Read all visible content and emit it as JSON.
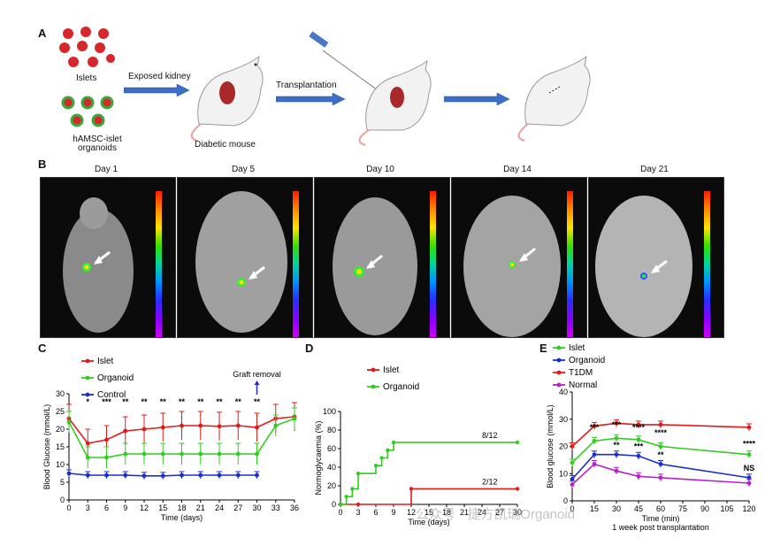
{
  "panel_a": {
    "letter": "A",
    "islets_label": "Islets",
    "organoid_label": "hAMSC-islet organoids",
    "step1_label": "Exposed kidney",
    "mouse_label": "Diabetic mouse",
    "step2_label": "Transplantation"
  },
  "panel_b": {
    "letter": "B",
    "images": [
      {
        "day": "Day 1"
      },
      {
        "day": "Day 5"
      },
      {
        "day": "Day 10"
      },
      {
        "day": "Day 14"
      },
      {
        "day": "Day 21"
      }
    ]
  },
  "chart_data": [
    {
      "panel": "C",
      "type": "line",
      "xlabel": "Time (days)",
      "ylabel": "Blood Glucose (mmol/L)",
      "xlim": [
        0,
        36
      ],
      "ylim": [
        0,
        30
      ],
      "xticks": [
        0,
        3,
        6,
        9,
        12,
        15,
        18,
        21,
        24,
        27,
        30,
        33,
        36
      ],
      "yticks": [
        0,
        5,
        10,
        15,
        20,
        25,
        30
      ],
      "annotation": "Graft removal",
      "annotation_x": 30,
      "significance": [
        {
          "x": 3,
          "label": "*"
        },
        {
          "x": 6,
          "label": "***"
        },
        {
          "x": 9,
          "label": "**"
        },
        {
          "x": 12,
          "label": "**"
        },
        {
          "x": 15,
          "label": "**"
        },
        {
          "x": 18,
          "label": "**"
        },
        {
          "x": 21,
          "label": "**"
        },
        {
          "x": 24,
          "label": "**"
        },
        {
          "x": 27,
          "label": "**"
        },
        {
          "x": 30,
          "label": "**"
        }
      ],
      "series": [
        {
          "name": "Islet",
          "color": "#e31a1c",
          "x": [
            0,
            3,
            6,
            9,
            12,
            15,
            18,
            21,
            24,
            27,
            30,
            33,
            36
          ],
          "y": [
            23,
            16,
            17,
            19.5,
            20,
            20.5,
            21,
            21,
            20.8,
            21,
            20.5,
            23,
            23.5
          ]
        },
        {
          "name": "Organoid",
          "color": "#33cc22",
          "x": [
            0,
            3,
            6,
            9,
            12,
            15,
            18,
            21,
            24,
            27,
            30,
            33,
            36
          ],
          "y": [
            22,
            12,
            12,
            13,
            13,
            13,
            13,
            13,
            13,
            13,
            13,
            21,
            23
          ]
        },
        {
          "name": "Control",
          "color": "#1a2ecf",
          "x": [
            0,
            3,
            6,
            9,
            12,
            15,
            18,
            21,
            24,
            27,
            30
          ],
          "y": [
            7.5,
            7,
            7,
            7,
            6.8,
            6.8,
            7,
            7,
            7,
            7,
            7
          ]
        }
      ]
    },
    {
      "panel": "D",
      "type": "line",
      "step": true,
      "xlabel": "Time (days)",
      "ylabel": "Normoglycaemia (%)",
      "xlim": [
        0,
        30
      ],
      "ylim": [
        0,
        100
      ],
      "xticks": [
        0,
        3,
        6,
        9,
        12,
        15,
        18,
        21,
        24,
        27,
        30
      ],
      "yticks": [
        0,
        20,
        40,
        60,
        80,
        100
      ],
      "series": [
        {
          "name": "Islet",
          "color": "#e31a1c",
          "x": [
            0,
            3,
            12,
            30
          ],
          "y": [
            0,
            0,
            16.7,
            16.7
          ],
          "end_label": "2/12"
        },
        {
          "name": "Organoid",
          "color": "#33cc22",
          "x": [
            0,
            1,
            2,
            3,
            6,
            7,
            8,
            9,
            30
          ],
          "y": [
            0,
            8.3,
            16.7,
            33.3,
            41.7,
            50,
            58.3,
            66.7,
            66.7
          ],
          "end_label": "8/12"
        }
      ]
    },
    {
      "panel": "E",
      "type": "line",
      "xlabel": "Time (min)",
      "xlabel2": "1 week post transplantation",
      "ylabel": "Blood glucose (mmol/L)",
      "xlim": [
        0,
        120
      ],
      "ylim": [
        0,
        40
      ],
      "xticks": [
        0,
        15,
        30,
        45,
        60,
        75,
        90,
        105,
        120
      ],
      "yticks": [
        0,
        10,
        20,
        30,
        40
      ],
      "significance": [
        {
          "x": 15,
          "label": "***"
        },
        {
          "x": 30,
          "label": "***"
        },
        {
          "x": 45,
          "label": "****"
        },
        {
          "x": 60,
          "label": "****"
        },
        {
          "x": 120,
          "label": "****"
        },
        {
          "x": 30,
          "label": "**"
        },
        {
          "x": 45,
          "label": "***"
        },
        {
          "x": 60,
          "label": "**"
        },
        {
          "x": 120,
          "label": "NS"
        }
      ],
      "series": [
        {
          "name": "Islet",
          "color": "#33cc22",
          "x": [
            0,
            15,
            30,
            45,
            60,
            120
          ],
          "y": [
            14,
            22,
            23,
            22.5,
            20,
            17
          ]
        },
        {
          "name": "Organoid",
          "color": "#1a2ecf",
          "x": [
            0,
            15,
            30,
            45,
            60,
            120
          ],
          "y": [
            8,
            17,
            17,
            16.5,
            13.5,
            8.5
          ]
        },
        {
          "name": "T1DM",
          "color": "#e31a1c",
          "x": [
            0,
            15,
            30,
            45,
            60,
            120
          ],
          "y": [
            20,
            27.5,
            28.5,
            28,
            28,
            27
          ]
        },
        {
          "name": "Normal",
          "color": "#b520c8",
          "x": [
            0,
            15,
            30,
            45,
            60,
            120
          ],
          "y": [
            6,
            13.5,
            11,
            9,
            8.5,
            6.5
          ]
        }
      ]
    }
  ],
  "watermark": "公众号 · 捷方凯瑞Organoid"
}
